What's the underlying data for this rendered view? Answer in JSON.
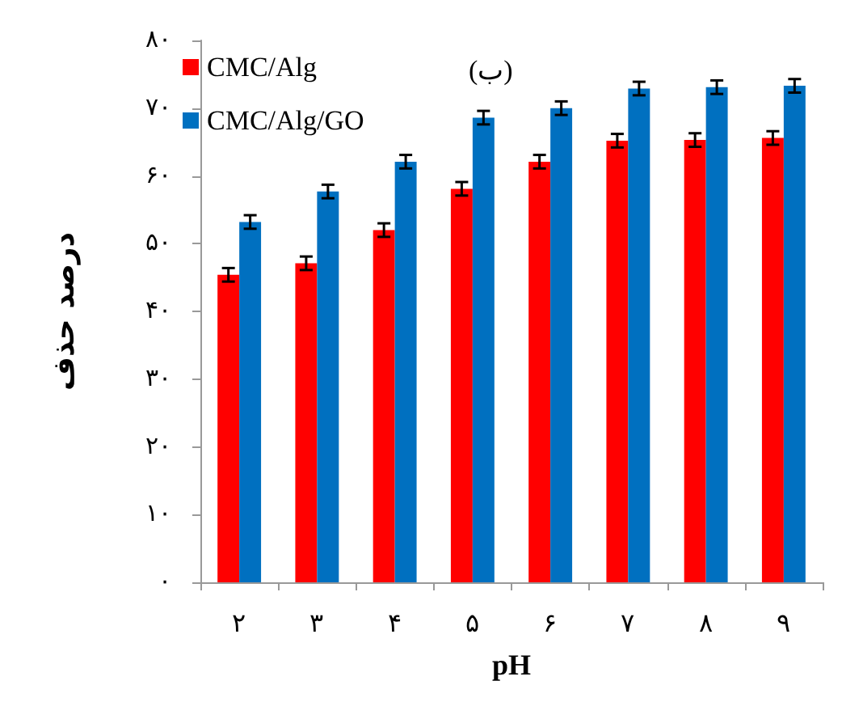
{
  "chart_data": {
    "type": "bar",
    "xlabel": "pH",
    "ylabel": "درصد حذف",
    "annotations": [
      "(ب)"
    ],
    "categories": [
      "۲",
      "۳",
      "۴",
      "۵",
      "۶",
      "۷",
      "۸",
      "۹"
    ],
    "series": [
      {
        "name": "CMC/Alg",
        "color": "#ff0000",
        "values": [
          45.4,
          47.1,
          52.0,
          58.1,
          62.1,
          65.2,
          65.3,
          65.6
        ],
        "errors": [
          1,
          1,
          1,
          1,
          1,
          1,
          1,
          1
        ]
      },
      {
        "name": "CMC/Alg/GO",
        "color": "#0070c0",
        "values": [
          53.2,
          57.7,
          62.1,
          68.6,
          70.0,
          72.9,
          73.1,
          73.3
        ],
        "errors": [
          1,
          1,
          1,
          1,
          1,
          1,
          1,
          1
        ]
      }
    ],
    "ylim": [
      0,
      80
    ],
    "yticks": [
      {
        "value": 0,
        "label": "۰"
      },
      {
        "value": 10,
        "label": "۱۰"
      },
      {
        "value": 20,
        "label": "۲۰"
      },
      {
        "value": 30,
        "label": "۳۰"
      },
      {
        "value": 40,
        "label": "۴۰"
      },
      {
        "value": 50,
        "label": "۵۰"
      },
      {
        "value": 60,
        "label": "۶۰"
      },
      {
        "value": 70,
        "label": "۷۰"
      },
      {
        "value": 80,
        "label": "۸۰"
      }
    ],
    "grid": false,
    "legend": "top left"
  }
}
